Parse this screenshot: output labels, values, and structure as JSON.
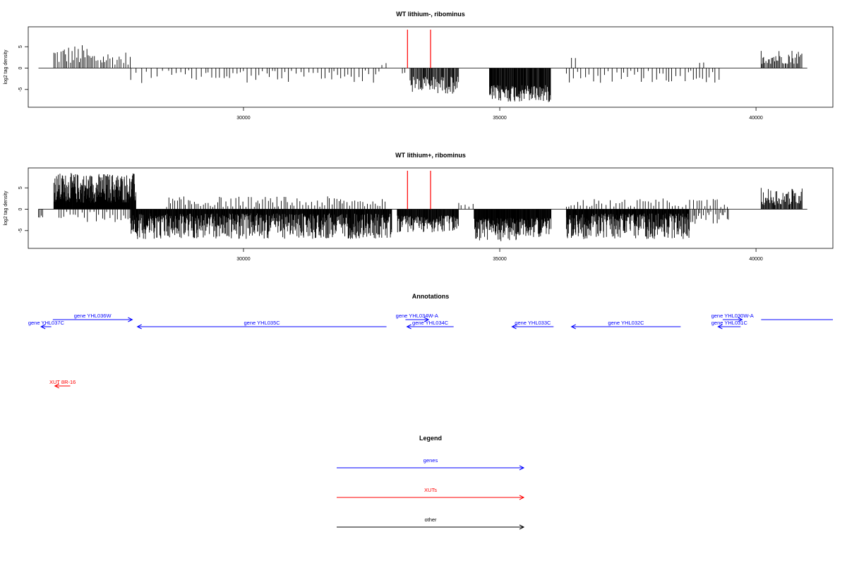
{
  "chart_data": [
    {
      "type": "bar",
      "title": "WT lithium-, ribominus",
      "ylabel": "log2 tag density",
      "xlim": [
        25800,
        41500
      ],
      "ylim": [
        -8.5,
        9
      ],
      "xticks": [
        30000,
        35000,
        40000
      ],
      "yticks": [
        -5,
        0,
        5
      ],
      "marker_lines": [
        33200,
        33650
      ],
      "marker_color": "#ff0000",
      "regions": [
        {
          "start": 26300,
          "end": 27000,
          "sign": 1,
          "min": 1.0,
          "max": 5.5,
          "step": 30
        },
        {
          "start": 27000,
          "end": 27800,
          "sign": 1,
          "min": 0.8,
          "max": 4.0,
          "step": 40
        },
        {
          "start": 27800,
          "end": 28600,
          "sign": -1,
          "min": 0.5,
          "max": 3.5,
          "step": 90
        },
        {
          "start": 28600,
          "end": 32700,
          "sign": -1,
          "min": 0.5,
          "max": 3.5,
          "step": 70
        },
        {
          "start": 32700,
          "end": 32800,
          "sign": 1,
          "min": 0.5,
          "max": 1.5,
          "step": 60
        },
        {
          "start": 33100,
          "end": 33200,
          "sign": -1,
          "min": 0.5,
          "max": 1.5,
          "step": 50
        },
        {
          "start": 33250,
          "end": 34200,
          "sign": -1,
          "min": 2.0,
          "max": 6.0,
          "step": 15
        },
        {
          "start": 34800,
          "end": 36000,
          "sign": -1,
          "min": 4.0,
          "max": 8.0,
          "step": 10
        },
        {
          "start": 36300,
          "end": 39300,
          "sign": -1,
          "min": 0.5,
          "max": 3.5,
          "step": 70
        },
        {
          "start": 36400,
          "end": 36500,
          "sign": 1,
          "min": 1.5,
          "max": 2.5,
          "step": 60
        },
        {
          "start": 38900,
          "end": 39000,
          "sign": 1,
          "min": 1.0,
          "max": 1.5,
          "step": 60
        },
        {
          "start": 40100,
          "end": 40900,
          "sign": 1,
          "min": 1.0,
          "max": 4.5,
          "step": 22
        }
      ]
    },
    {
      "type": "bar",
      "title": "WT lithium+, ribominus",
      "ylabel": "log2 tag density",
      "xlim": [
        25800,
        41500
      ],
      "ylim": [
        -8.5,
        9
      ],
      "xticks": [
        30000,
        35000,
        40000
      ],
      "yticks": [
        -5,
        0,
        5
      ],
      "marker_lines": [
        33200,
        33650
      ],
      "marker_color": "#ff0000",
      "regions": [
        {
          "start": 26000,
          "end": 26100,
          "sign": -1,
          "min": 1.5,
          "max": 2.5,
          "step": 40
        },
        {
          "start": 26300,
          "end": 27900,
          "sign": 1,
          "min": 1.5,
          "max": 8.5,
          "step": 6
        },
        {
          "start": 26400,
          "end": 27900,
          "sign": -1,
          "min": 0.5,
          "max": 3.0,
          "step": 60
        },
        {
          "start": 27800,
          "end": 32900,
          "sign": -1,
          "min": 1.0,
          "max": 7.0,
          "step": 8
        },
        {
          "start": 28500,
          "end": 32800,
          "sign": 1,
          "min": 0.5,
          "max": 3.0,
          "step": 45
        },
        {
          "start": 33000,
          "end": 34200,
          "sign": -1,
          "min": 1.5,
          "max": 5.5,
          "step": 9
        },
        {
          "start": 34200,
          "end": 34500,
          "sign": 1,
          "min": 0.5,
          "max": 1.5,
          "step": 60
        },
        {
          "start": 34500,
          "end": 35400,
          "sign": -1,
          "min": 2.0,
          "max": 7.5,
          "step": 7
        },
        {
          "start": 35400,
          "end": 36000,
          "sign": -1,
          "min": 2.0,
          "max": 6.5,
          "step": 8
        },
        {
          "start": 36300,
          "end": 38700,
          "sign": -1,
          "min": 1.0,
          "max": 7.0,
          "step": 8
        },
        {
          "start": 36300,
          "end": 39500,
          "sign": 1,
          "min": 0.5,
          "max": 2.5,
          "step": 60
        },
        {
          "start": 38700,
          "end": 39500,
          "sign": -1,
          "min": 0.5,
          "max": 3.5,
          "step": 35
        },
        {
          "start": 40100,
          "end": 40900,
          "sign": 1,
          "min": 1.0,
          "max": 5.0,
          "step": 15
        }
      ]
    }
  ],
  "annotations": {
    "title": "Annotations",
    "items": [
      {
        "label": "gene YHL037C",
        "row": 1,
        "x1": 26050,
        "x2": 26250,
        "dir": "left",
        "color": "#0000ff"
      },
      {
        "label": "gene YHL036W",
        "row": 0,
        "x1": 26280,
        "x2": 27830,
        "dir": "right",
        "color": "#0000ff"
      },
      {
        "label": "gene YHL035C",
        "row": 1,
        "x1": 27930,
        "x2": 32790,
        "dir": "left",
        "color": "#0000ff"
      },
      {
        "label": "gene YHL034W-A",
        "row": 0,
        "x1": 33160,
        "x2": 33610,
        "dir": "right",
        "color": "#0000ff"
      },
      {
        "label": "gene YHL034C",
        "row": 1,
        "x1": 33190,
        "x2": 34100,
        "dir": "left",
        "color": "#0000ff"
      },
      {
        "label": "gene YHL033C",
        "row": 1,
        "x1": 35240,
        "x2": 36050,
        "dir": "left",
        "color": "#0000ff"
      },
      {
        "label": "gene YHL032C",
        "row": 1,
        "x1": 36400,
        "x2": 38530,
        "dir": "left",
        "color": "#0000ff"
      },
      {
        "label": "gene YHL030W-A",
        "row": 0,
        "x1": 39350,
        "x2": 39730,
        "dir": "right",
        "color": "#0000ff"
      },
      {
        "label": "gene YHL031C",
        "row": 1,
        "x1": 39260,
        "x2": 39700,
        "dir": "left",
        "color": "#0000ff"
      },
      {
        "label": "",
        "row": 0,
        "x1": 40100,
        "x2": 41500,
        "dir": "none",
        "color": "#0000ff"
      },
      {
        "label": "XUT 8R-16",
        "row": 3,
        "x1": 26320,
        "x2": 26620,
        "dir": "left",
        "color": "#ff0000"
      }
    ]
  },
  "legend": {
    "title": "Legend",
    "items": [
      {
        "label": "genes",
        "color": "#0000ff"
      },
      {
        "label": "XUTs",
        "color": "#ff0000"
      },
      {
        "label": "other",
        "color": "#000000"
      }
    ]
  }
}
